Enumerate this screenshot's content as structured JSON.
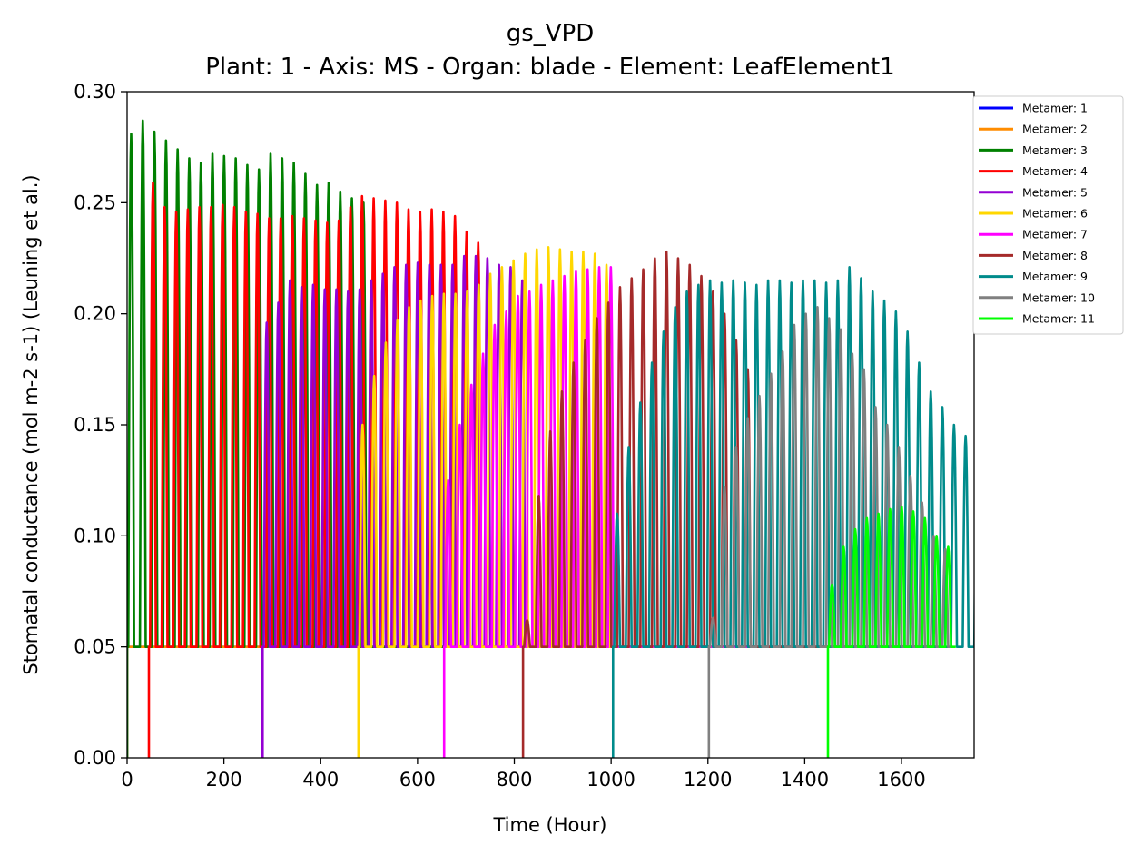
{
  "chart_data": {
    "type": "line",
    "title": "gs_VPD",
    "subtitle": "Plant: 1 - Axis: MS - Organ: blade - Element: LeafElement1",
    "xlabel": "Time (Hour)",
    "ylabel": "Stomatal conductance (mol m-2 s-1) (Leuning et al.)",
    "xlim": [
      0,
      1750
    ],
    "ylim": [
      0,
      0.3
    ],
    "xticks": [
      0,
      200,
      400,
      600,
      800,
      1000,
      1200,
      1400,
      1600
    ],
    "xtick_labels": [
      "0",
      "200",
      "400",
      "600",
      "800",
      "1000",
      "1200",
      "1400",
      "1600"
    ],
    "yticks": [
      0,
      0.05,
      0.1,
      0.15,
      0.2,
      0.25,
      0.3
    ],
    "ytick_labels": [
      "0.00",
      "0.05",
      "0.10",
      "0.15",
      "0.20",
      "0.25",
      "0.30"
    ],
    "grid": false,
    "legend_position": "outside-top-right",
    "series": [
      {
        "name": "Metamer: 1",
        "color": "#0000ff",
        "start": 0,
        "end": 1670,
        "day_peaks": []
      },
      {
        "name": "Metamer: 2",
        "color": "#ff8c00",
        "start": 0,
        "end": 1670,
        "day_peaks": []
      },
      {
        "name": "Metamer: 3",
        "color": "#008000",
        "start": 0,
        "end": 1670,
        "day_peaks": [
          0.281,
          0.287,
          0.282,
          0.278,
          0.274,
          0.27,
          0.268,
          0.272,
          0.271,
          0.27,
          0.267,
          0.265,
          0.272,
          0.27,
          0.268,
          0.263,
          0.258,
          0.259,
          0.255,
          0.252,
          0.25
        ]
      },
      {
        "name": "Metamer: 4",
        "color": "#ff0000",
        "start": 45,
        "end": 1670,
        "day_peaks": [
          0.259,
          0.248,
          0.246,
          0.247,
          0.248,
          0.248,
          0.249,
          0.248,
          0.246,
          0.245,
          0.243,
          0.243,
          0.244,
          0.243,
          0.242,
          0.241,
          0.242,
          0.248,
          0.253,
          0.252,
          0.251,
          0.25,
          0.247,
          0.246,
          0.247,
          0.246,
          0.244,
          0.237,
          0.232
        ]
      },
      {
        "name": "Metamer: 5",
        "color": "#9400d3",
        "start": 280,
        "end": 1670,
        "day_peaks": [
          0.196,
          0.205,
          0.215,
          0.212,
          0.213,
          0.211,
          0.211,
          0.21,
          0.211,
          0.215,
          0.218,
          0.221,
          0.222,
          0.223,
          0.222,
          0.222,
          0.222,
          0.226,
          0.226,
          0.225,
          0.222,
          0.221,
          0.215
        ]
      },
      {
        "name": "Metamer: 6",
        "color": "#ffd700",
        "start": 478,
        "end": 1670,
        "day_peaks": [
          0.15,
          0.172,
          0.187,
          0.197,
          0.203,
          0.206,
          0.208,
          0.209,
          0.209,
          0.21,
          0.213,
          0.218,
          0.221,
          0.224,
          0.227,
          0.229,
          0.23,
          0.229,
          0.228,
          0.228,
          0.227,
          0.222
        ]
      },
      {
        "name": "Metamer: 7",
        "color": "#ff00ff",
        "start": 655,
        "end": 1670,
        "day_peaks": [
          0.125,
          0.15,
          0.168,
          0.182,
          0.195,
          0.201,
          0.208,
          0.21,
          0.213,
          0.215,
          0.217,
          0.219,
          0.22,
          0.221,
          0.221
        ]
      },
      {
        "name": "Metamer: 8",
        "color": "#a52a2a",
        "start": 818,
        "end": 1670,
        "day_peaks": [
          0.062,
          0.118,
          0.147,
          0.165,
          0.178,
          0.188,
          0.198,
          0.205,
          0.212,
          0.216,
          0.22,
          0.225,
          0.228,
          0.225,
          0.222,
          0.217,
          0.21,
          0.2,
          0.188,
          0.175
        ]
      },
      {
        "name": "Metamer: 9",
        "color": "#008b8b",
        "start": 1004,
        "end": 1670,
        "day_peaks": [
          0.11,
          0.14,
          0.16,
          0.178,
          0.192,
          0.203,
          0.21,
          0.213,
          0.215,
          0.214,
          0.215,
          0.214,
          0.213,
          0.215,
          0.215,
          0.214,
          0.215,
          0.215,
          0.214,
          0.215,
          0.221,
          0.216,
          0.21,
          0.206,
          0.201,
          0.192,
          0.178,
          0.165,
          0.158,
          0.15,
          0.145,
          0.136
        ]
      },
      {
        "name": "Metamer: 10",
        "color": "#808080",
        "start": 1202,
        "end": 1670,
        "day_peaks": [
          0.063,
          0.122,
          0.14,
          0.153,
          0.163,
          0.173,
          0.183,
          0.195,
          0.2,
          0.203,
          0.198,
          0.193,
          0.182,
          0.175,
          0.158,
          0.15,
          0.14,
          0.127,
          0.115,
          0.1,
          0.094
        ]
      },
      {
        "name": "Metamer: 11",
        "color": "#00ff00",
        "start": 1448,
        "end": 1670,
        "day_peaks": [
          0.078,
          0.095,
          0.103,
          0.108,
          0.11,
          0.112,
          0.113,
          0.111,
          0.108,
          0.1,
          0.095
        ]
      }
    ],
    "baseline": 0.05,
    "period_hours": 24
  }
}
